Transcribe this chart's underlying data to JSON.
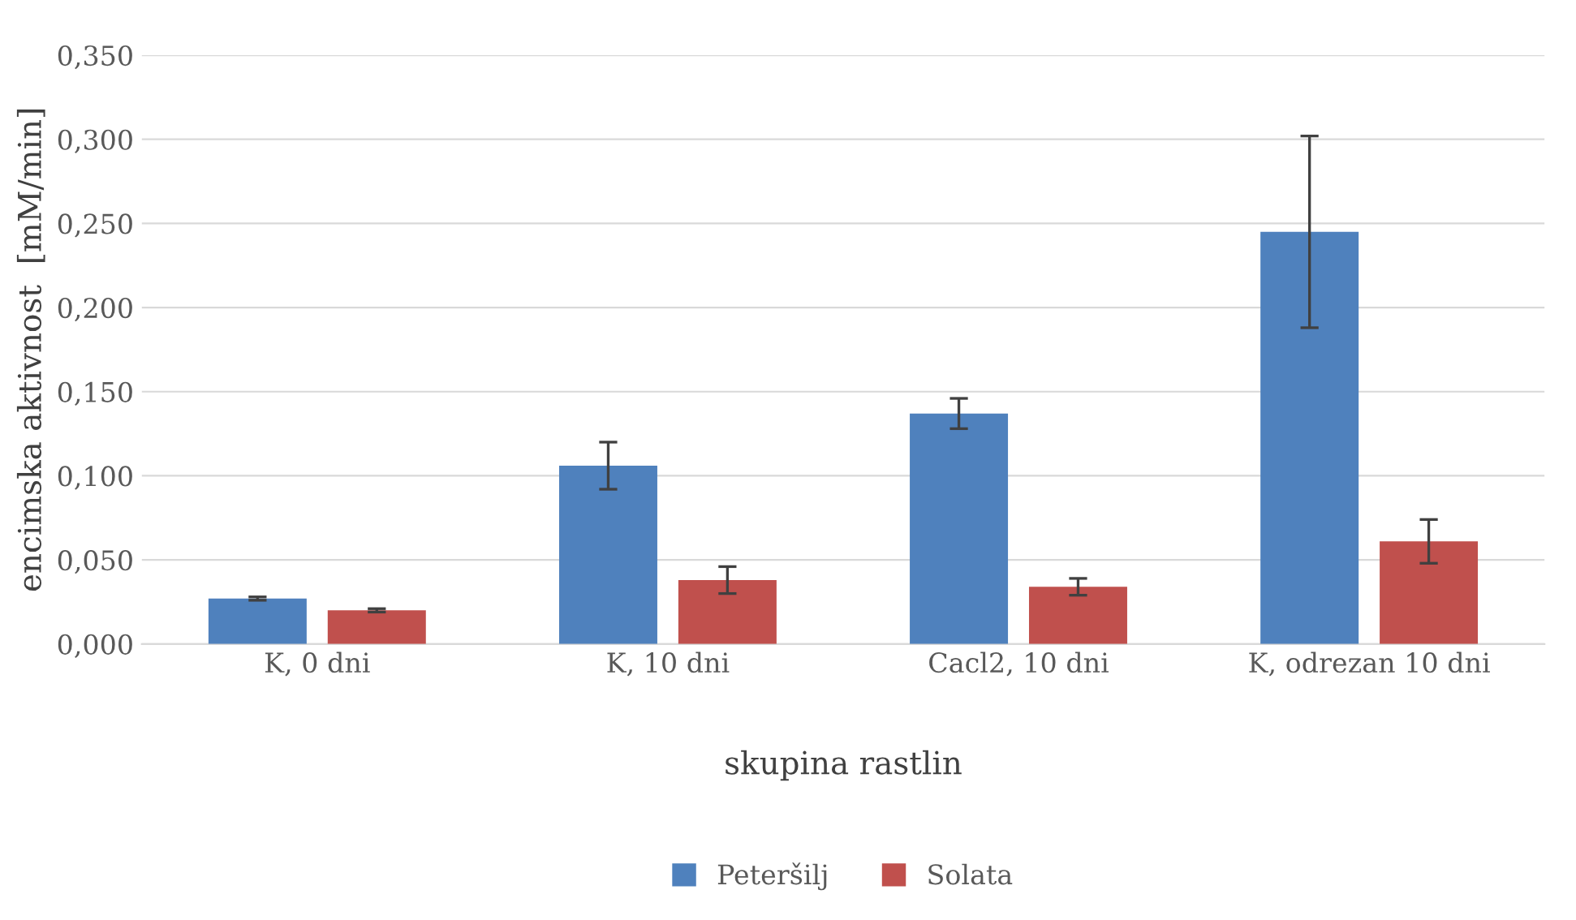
{
  "chart_data": {
    "type": "bar",
    "xlabel": "skupina rastlin",
    "ylabel": "encimska aktivnost  [mM/min]",
    "categories": [
      "K, 0 dni",
      "K, 10 dni",
      "Cacl2, 10 dni",
      "K, odrezan 10 dni"
    ],
    "series": [
      {
        "name": "Peteršilj",
        "color": "#4f81bd",
        "values": [
          0.027,
          0.106,
          0.137,
          0.245
        ],
        "errors": [
          0.001,
          0.014,
          0.009,
          0.057
        ]
      },
      {
        "name": "Solata",
        "color": "#c0504d",
        "values": [
          0.02,
          0.038,
          0.034,
          0.061
        ],
        "errors": [
          0.001,
          0.008,
          0.005,
          0.013
        ]
      }
    ],
    "ylim": [
      0,
      0.35
    ],
    "yticks": [
      {
        "value": 0,
        "label": "0,000"
      },
      {
        "value": 0.05,
        "label": "0,050"
      },
      {
        "value": 0.1,
        "label": "0,100"
      },
      {
        "value": 0.15,
        "label": "0,150"
      },
      {
        "value": 0.2,
        "label": "0,200"
      },
      {
        "value": 0.25,
        "label": "0,250"
      },
      {
        "value": 0.3,
        "label": "0,300"
      },
      {
        "value": 0.35,
        "label": "0,350"
      }
    ],
    "grid": "y",
    "legend": "bottom"
  }
}
